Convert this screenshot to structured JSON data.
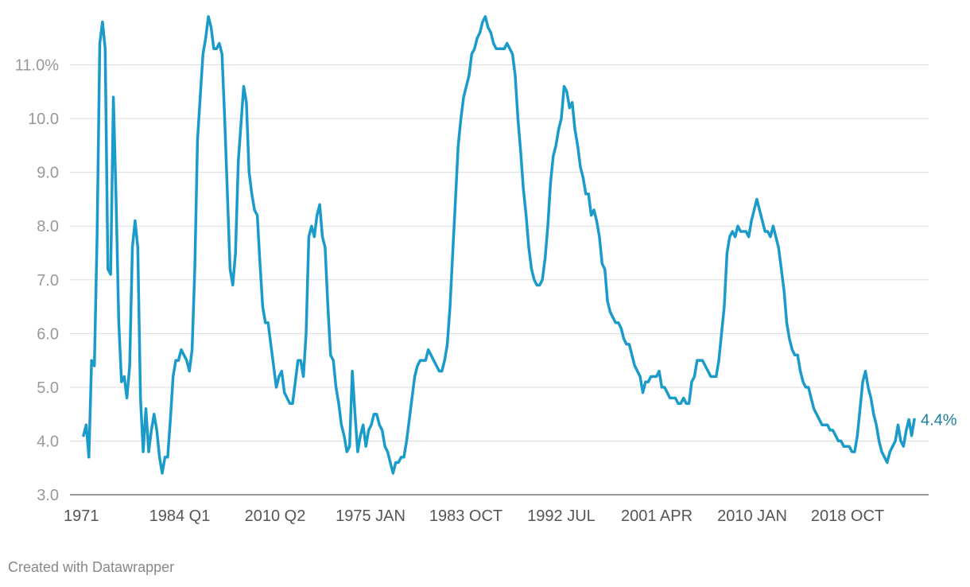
{
  "colors": {
    "series": "#1a9bc9",
    "end_label": "#1b7fa3"
  },
  "credit": "Created with Datawrapper",
  "chart_data": {
    "type": "line",
    "title": "",
    "xlabel": "",
    "ylabel": "",
    "grid": true,
    "ylim": [
      3.0,
      12.0
    ],
    "y_ticks": [
      {
        "value": 3.0,
        "label": "3.0"
      },
      {
        "value": 4.0,
        "label": "4.0"
      },
      {
        "value": 5.0,
        "label": "5.0"
      },
      {
        "value": 6.0,
        "label": "6.0"
      },
      {
        "value": 7.0,
        "label": "7.0"
      },
      {
        "value": 8.0,
        "label": "8.0"
      },
      {
        "value": 9.0,
        "label": "9.0"
      },
      {
        "value": 10.0,
        "label": "10.0"
      },
      {
        "value": 11.0,
        "label": "11.0%"
      }
    ],
    "x_tick_labels": [
      "1971",
      "1984 Q1",
      "2010 Q2",
      "1975 JAN",
      "1983 OCT",
      "1992 JUL",
      "2001 APR",
      "2010 JAN",
      "2018 OCT"
    ],
    "end_label": "4.4%",
    "series": [
      {
        "values": [
          4.1,
          4.3,
          3.7,
          5.5,
          5.4,
          7.8,
          11.4,
          11.8,
          11.3,
          7.2,
          7.1,
          10.4,
          8.5,
          6.2,
          5.1,
          5.2,
          4.8,
          5.4,
          7.6,
          8.1,
          7.6,
          4.8,
          3.8,
          4.6,
          3.8,
          4.2,
          4.5,
          4.2,
          3.7,
          3.4,
          3.7,
          3.7,
          4.4,
          5.2,
          5.5,
          5.5,
          5.7,
          5.6,
          5.5,
          5.3,
          5.7,
          7.2,
          9.6,
          10.4,
          11.2,
          11.5,
          11.9,
          11.7,
          11.3,
          11.3,
          11.4,
          11.2,
          10.0,
          8.6,
          7.2,
          6.9,
          7.5,
          9.2,
          9.9,
          10.6,
          10.3,
          9.0,
          8.6,
          8.3,
          8.2,
          7.3,
          6.5,
          6.2,
          6.2,
          5.8,
          5.4,
          5.0,
          5.2,
          5.3,
          4.9,
          4.8,
          4.7,
          4.7,
          5.1,
          5.5,
          5.5,
          5.2,
          6.0,
          7.8,
          8.0,
          7.8,
          8.2,
          8.4,
          7.8,
          7.6,
          6.5,
          5.6,
          5.5,
          5.0,
          4.7,
          4.3,
          4.1,
          3.8,
          3.9,
          5.3,
          4.5,
          3.8,
          4.1,
          4.3,
          3.9,
          4.2,
          4.3,
          4.5,
          4.5,
          4.3,
          4.2,
          3.9,
          3.8,
          3.6,
          3.4,
          3.6,
          3.6,
          3.7,
          3.7,
          4.0,
          4.4,
          4.8,
          5.2,
          5.4,
          5.5,
          5.5,
          5.5,
          5.7,
          5.6,
          5.5,
          5.4,
          5.3,
          5.3,
          5.5,
          5.8,
          6.5,
          7.5,
          8.5,
          9.5,
          10.0,
          10.4,
          10.6,
          10.8,
          11.2,
          11.3,
          11.5,
          11.6,
          11.8,
          11.9,
          11.7,
          11.6,
          11.4,
          11.3,
          11.3,
          11.3,
          11.3,
          11.4,
          11.3,
          11.2,
          10.8,
          10.0,
          9.4,
          8.7,
          8.2,
          7.6,
          7.2,
          7.0,
          6.9,
          6.9,
          7.0,
          7.4,
          8.0,
          8.8,
          9.3,
          9.5,
          9.8,
          10.0,
          10.6,
          10.5,
          10.2,
          10.3,
          9.8,
          9.5,
          9.1,
          8.9,
          8.6,
          8.6,
          8.2,
          8.3,
          8.1,
          7.8,
          7.3,
          7.2,
          6.6,
          6.4,
          6.3,
          6.2,
          6.2,
          6.1,
          5.9,
          5.8,
          5.8,
          5.6,
          5.4,
          5.3,
          5.2,
          4.9,
          5.1,
          5.1,
          5.2,
          5.2,
          5.2,
          5.3,
          5.0,
          5.0,
          4.9,
          4.8,
          4.8,
          4.8,
          4.7,
          4.7,
          4.8,
          4.7,
          4.7,
          5.1,
          5.2,
          5.5,
          5.5,
          5.5,
          5.4,
          5.3,
          5.2,
          5.2,
          5.2,
          5.5,
          6.0,
          6.5,
          7.5,
          7.8,
          7.9,
          7.8,
          8.0,
          7.9,
          7.9,
          7.9,
          7.8,
          8.1,
          8.3,
          8.5,
          8.3,
          8.1,
          7.9,
          7.9,
          7.8,
          8.0,
          7.8,
          7.6,
          7.2,
          6.8,
          6.2,
          5.9,
          5.7,
          5.6,
          5.6,
          5.3,
          5.1,
          5.0,
          5.0,
          4.8,
          4.6,
          4.5,
          4.4,
          4.3,
          4.3,
          4.3,
          4.2,
          4.2,
          4.1,
          4.0,
          4.0,
          3.9,
          3.9,
          3.9,
          3.8,
          3.8,
          4.1,
          4.6,
          5.1,
          5.3,
          5.0,
          4.8,
          4.5,
          4.3,
          4.0,
          3.8,
          3.7,
          3.6,
          3.8,
          3.9,
          4.0,
          4.3,
          4.0,
          3.9,
          4.2,
          4.4,
          4.1,
          4.4
        ]
      }
    ]
  }
}
